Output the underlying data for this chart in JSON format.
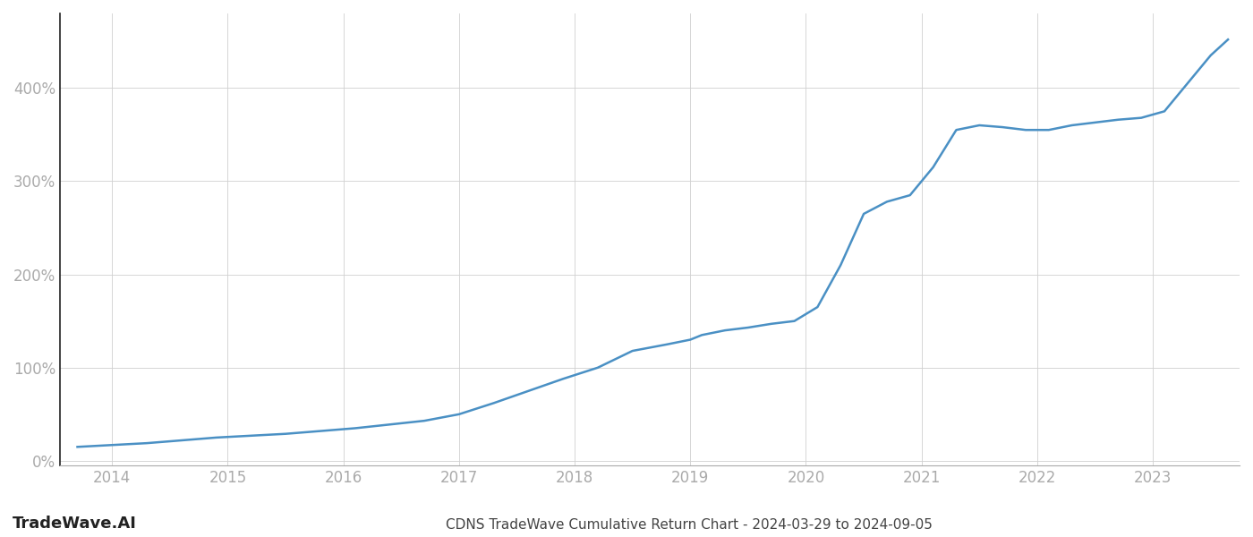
{
  "title": "CDNS TradeWave Cumulative Return Chart - 2024-03-29 to 2024-09-05",
  "watermark": "TradeWave.AI",
  "line_color": "#4a90c4",
  "background_color": "#ffffff",
  "grid_color": "#d0d0d0",
  "x_years": [
    2014,
    2015,
    2016,
    2017,
    2018,
    2019,
    2020,
    2021,
    2022,
    2023
  ],
  "x_data": [
    2013.7,
    2014.0,
    2014.3,
    2014.6,
    2014.9,
    2015.2,
    2015.5,
    2015.8,
    2016.1,
    2016.4,
    2016.7,
    2017.0,
    2017.3,
    2017.6,
    2017.9,
    2018.2,
    2018.5,
    2018.8,
    2019.0,
    2019.1,
    2019.3,
    2019.5,
    2019.7,
    2019.9,
    2020.1,
    2020.3,
    2020.5,
    2020.7,
    2020.9,
    2021.1,
    2021.3,
    2021.5,
    2021.7,
    2021.9,
    2022.1,
    2022.3,
    2022.5,
    2022.7,
    2022.9,
    2023.1,
    2023.3,
    2023.5,
    2023.65
  ],
  "y_data": [
    15,
    17,
    19,
    22,
    25,
    27,
    29,
    32,
    35,
    39,
    43,
    50,
    62,
    75,
    88,
    100,
    118,
    125,
    130,
    135,
    140,
    143,
    147,
    150,
    165,
    210,
    265,
    278,
    285,
    315,
    355,
    360,
    358,
    355,
    355,
    360,
    363,
    366,
    368,
    375,
    405,
    435,
    452
  ],
  "ylim": [
    -5,
    480
  ],
  "yticks": [
    0,
    100,
    200,
    300,
    400
  ],
  "xlim": [
    2013.55,
    2023.75
  ],
  "line_width": 1.8,
  "title_fontsize": 11,
  "tick_fontsize": 12,
  "watermark_fontsize": 13,
  "left_spine_color": "#222222",
  "bottom_spine_color": "#aaaaaa",
  "tick_color": "#aaaaaa"
}
